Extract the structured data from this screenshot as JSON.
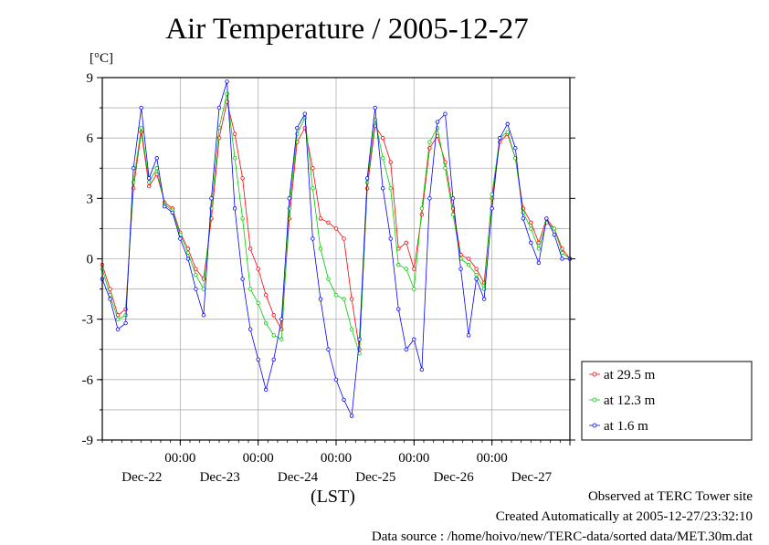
{
  "chart_data": {
    "type": "line",
    "title": "Air Temperature / 2005-12-27",
    "ylabel": "[°C]",
    "xlabel": "(LST)",
    "ylim": [
      -9,
      9
    ],
    "yticks": [
      -9,
      -6,
      -3,
      0,
      3,
      6,
      9
    ],
    "x_unit": "days since start of Dec-22 period (midnight ticks)",
    "xlim": [
      0,
      6.0
    ],
    "xticks": [
      {
        "x": 1.0,
        "time": "00:00",
        "date": "Dec-22"
      },
      {
        "x": 2.0,
        "time": "00:00",
        "date": "Dec-23"
      },
      {
        "x": 3.0,
        "time": "00:00",
        "date": "Dec-24"
      },
      {
        "x": 4.0,
        "time": "00:00",
        "date": "Dec-25"
      },
      {
        "x": 5.0,
        "time": "00:00",
        "date": "Dec-26"
      },
      {
        "x": 6.0,
        "time": "",
        "date": "Dec-27"
      }
    ],
    "legend_position": "right",
    "series": [
      {
        "name": "at 29.5 m",
        "color": "#ff0000",
        "x": [
          0.0,
          0.1,
          0.2,
          0.3,
          0.4,
          0.5,
          0.6,
          0.7,
          0.8,
          0.9,
          1.0,
          1.1,
          1.2,
          1.3,
          1.4,
          1.5,
          1.6,
          1.7,
          1.8,
          1.9,
          2.0,
          2.1,
          2.2,
          2.3,
          2.4,
          2.5,
          2.6,
          2.7,
          2.8,
          2.9,
          3.0,
          3.1,
          3.2,
          3.3,
          3.4,
          3.5,
          3.6,
          3.7,
          3.8,
          3.9,
          4.0,
          4.1,
          4.2,
          4.3,
          4.4,
          4.5,
          4.6,
          4.7,
          4.8,
          4.9,
          5.0,
          5.1,
          5.2,
          5.3,
          5.4,
          5.5,
          5.6,
          5.7,
          5.8,
          5.9,
          6.0
        ],
        "y": [
          -0.3,
          -1.5,
          -2.8,
          -2.5,
          3.5,
          6.3,
          3.6,
          4.2,
          2.8,
          2.5,
          1.3,
          0.5,
          -0.5,
          -1.0,
          2.0,
          6.0,
          7.8,
          6.2,
          4.0,
          0.5,
          -0.5,
          -1.8,
          -2.8,
          -3.5,
          2.0,
          5.8,
          6.5,
          4.5,
          2.0,
          1.8,
          1.5,
          1.0,
          -2.0,
          -4.5,
          3.5,
          6.6,
          6.0,
          4.8,
          0.5,
          0.8,
          -0.5,
          2.2,
          5.5,
          6.1,
          4.8,
          2.5,
          0.2,
          0.0,
          -0.5,
          -1.2,
          3.0,
          5.8,
          6.2,
          5.0,
          2.5,
          1.8,
          0.8,
          2.0,
          1.5,
          0.5,
          0.0
        ]
      },
      {
        "name": "at 12.3 m",
        "color": "#00cc00",
        "x": [
          0.0,
          0.1,
          0.2,
          0.3,
          0.4,
          0.5,
          0.6,
          0.7,
          0.8,
          0.9,
          1.0,
          1.1,
          1.2,
          1.3,
          1.4,
          1.5,
          1.6,
          1.7,
          1.8,
          1.9,
          2.0,
          2.1,
          2.2,
          2.3,
          2.4,
          2.5,
          2.6,
          2.7,
          2.8,
          2.9,
          3.0,
          3.1,
          3.2,
          3.3,
          3.4,
          3.5,
          3.6,
          3.7,
          3.8,
          3.9,
          4.0,
          4.1,
          4.2,
          4.3,
          4.4,
          4.5,
          4.6,
          4.7,
          4.8,
          4.9,
          5.0,
          5.1,
          5.2,
          5.3,
          5.4,
          5.5,
          5.6,
          5.7,
          5.8,
          5.9,
          6.0
        ],
        "y": [
          -0.5,
          -1.8,
          -3.0,
          -2.8,
          3.8,
          6.5,
          3.8,
          4.5,
          2.7,
          2.4,
          1.2,
          0.3,
          -0.8,
          -1.5,
          2.5,
          6.5,
          8.2,
          5.0,
          2.0,
          -1.5,
          -2.2,
          -3.2,
          -3.8,
          -4.0,
          2.5,
          6.2,
          7.0,
          3.5,
          0.5,
          -1.0,
          -1.8,
          -2.0,
          -3.5,
          -4.7,
          3.8,
          6.9,
          5.0,
          3.5,
          -0.3,
          -0.5,
          -1.5,
          2.5,
          5.8,
          6.5,
          4.5,
          2.2,
          0.0,
          -0.3,
          -0.8,
          -1.5,
          3.2,
          6.0,
          6.3,
          5.0,
          2.3,
          1.5,
          0.5,
          1.8,
          1.5,
          0.3,
          0.0
        ]
      },
      {
        "name": "at 1.6 m",
        "color": "#0000ff",
        "x": [
          0.0,
          0.1,
          0.2,
          0.3,
          0.4,
          0.5,
          0.6,
          0.7,
          0.8,
          0.9,
          1.0,
          1.1,
          1.2,
          1.3,
          1.4,
          1.5,
          1.6,
          1.7,
          1.8,
          1.9,
          2.0,
          2.1,
          2.2,
          2.3,
          2.4,
          2.5,
          2.6,
          2.7,
          2.8,
          2.9,
          3.0,
          3.1,
          3.2,
          3.3,
          3.4,
          3.5,
          3.6,
          3.7,
          3.8,
          3.9,
          4.0,
          4.1,
          4.2,
          4.3,
          4.4,
          4.5,
          4.6,
          4.7,
          4.8,
          4.9,
          5.0,
          5.1,
          5.2,
          5.3,
          5.4,
          5.5,
          5.6,
          5.7,
          5.8,
          5.9,
          6.0
        ],
        "y": [
          -1.0,
          -2.0,
          -3.5,
          -3.2,
          4.5,
          7.5,
          4.0,
          5.0,
          2.6,
          2.3,
          1.0,
          0.0,
          -1.5,
          -2.8,
          3.0,
          7.5,
          8.8,
          2.5,
          -1.0,
          -3.5,
          -5.0,
          -6.5,
          -5.0,
          -3.0,
          3.0,
          6.5,
          7.2,
          1.0,
          -2.0,
          -4.5,
          -6.0,
          -7.0,
          -7.8,
          -4.0,
          4.0,
          7.5,
          3.5,
          1.0,
          -2.5,
          -4.5,
          -4.0,
          -5.5,
          3.0,
          6.8,
          7.2,
          3.0,
          -0.5,
          -3.8,
          -1.0,
          -2.0,
          2.5,
          6.0,
          6.7,
          5.5,
          2.0,
          0.8,
          -0.2,
          2.0,
          1.2,
          0.0,
          0.0
        ]
      }
    ]
  },
  "footer": {
    "observed": "Observed at TERC Tower site",
    "created": "Created Automatically at 2005-12-27/23:32:10",
    "source": "Data source : /home/hoivo/new/TERC-data/sorted  data/MET.30m.dat"
  }
}
